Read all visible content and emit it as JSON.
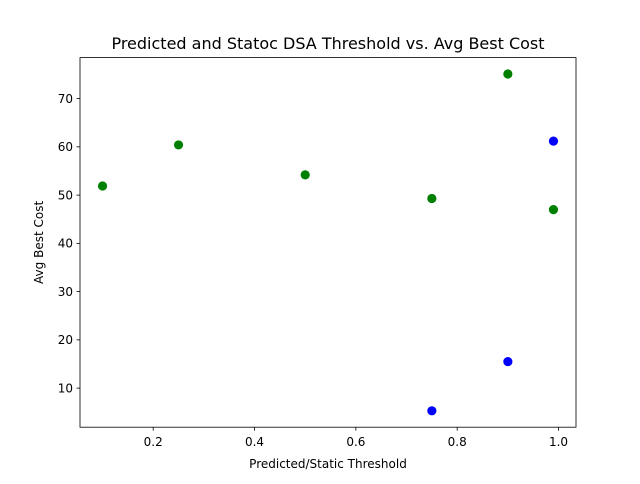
{
  "chart_data": {
    "type": "scatter",
    "title": "Predicted and Statoc DSA Threshold vs. Avg Best Cost",
    "xlabel": "Predicted/Static Threshold",
    "ylabel": "Avg Best Cost",
    "xlim": [
      0.0555,
      1.0345
    ],
    "ylim": [
      1.9,
      78.5
    ],
    "xticks": [
      0.2,
      0.4,
      0.6,
      0.8,
      1.0
    ],
    "xtick_labels": [
      "0.2",
      "0.4",
      "0.6",
      "0.8",
      "1.0"
    ],
    "yticks": [
      10,
      20,
      30,
      40,
      50,
      60,
      70
    ],
    "ytick_labels": [
      "10",
      "20",
      "30",
      "40",
      "50",
      "60",
      "70"
    ],
    "grid": false,
    "series": [
      {
        "color": "#0000ff",
        "points": [
          {
            "x": 0.75,
            "y": 5.3
          },
          {
            "x": 0.9,
            "y": 15.5
          },
          {
            "x": 0.99,
            "y": 61.2
          }
        ]
      },
      {
        "color": "#008000",
        "points": [
          {
            "x": 0.1,
            "y": 51.9
          },
          {
            "x": 0.25,
            "y": 60.4
          },
          {
            "x": 0.5,
            "y": 54.2
          },
          {
            "x": 0.75,
            "y": 49.3
          },
          {
            "x": 0.9,
            "y": 75.1
          },
          {
            "x": 0.99,
            "y": 47.0
          }
        ]
      }
    ]
  }
}
